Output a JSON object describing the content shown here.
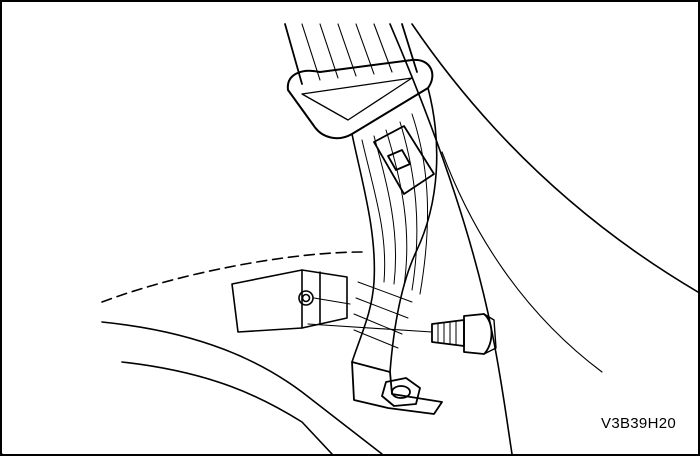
{
  "figure": {
    "code": "V3B39H20"
  },
  "colors": {
    "line": "#000000",
    "background": "#ffffff"
  }
}
